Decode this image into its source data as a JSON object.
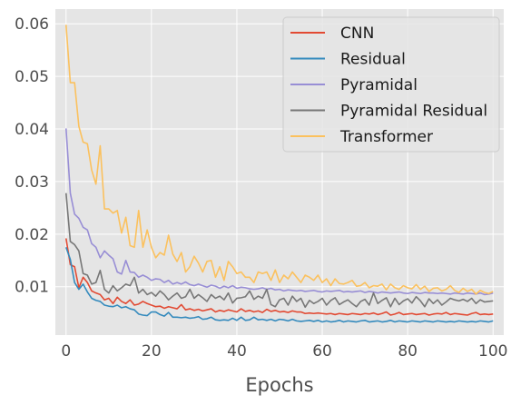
{
  "chart_data": {
    "type": "line",
    "title": "",
    "xlabel": "Epochs",
    "ylabel": "",
    "xlim": [
      -2.5,
      102.5
    ],
    "ylim": [
      0.0008,
      0.0628
    ],
    "x_ticks": [
      0,
      20,
      40,
      60,
      80,
      100
    ],
    "x_tick_labels": [
      "0",
      "20",
      "40",
      "60",
      "80",
      "100"
    ],
    "y_ticks": [
      0.01,
      0.02,
      0.03,
      0.04,
      0.05,
      0.06
    ],
    "y_tick_labels": [
      "0.01",
      "0.02",
      "0.03",
      "0.04",
      "0.05",
      "0.06"
    ],
    "grid": true,
    "legend_position": "top-right",
    "style": {
      "background": "#e5e5e5",
      "grid_color": "#ffffff",
      "text_color": "#4d4d4d"
    },
    "series": [
      {
        "name": "CNN",
        "color": "#e24a33",
        "values": [
          0.0192,
          0.0142,
          0.0138,
          0.0098,
          0.0118,
          0.0108,
          0.0092,
          0.0088,
          0.0085,
          0.0075,
          0.0078,
          0.0068,
          0.008,
          0.0072,
          0.0068,
          0.0075,
          0.0065,
          0.0067,
          0.0072,
          0.0068,
          0.0065,
          0.0062,
          0.0063,
          0.0059,
          0.0062,
          0.006,
          0.0058,
          0.0066,
          0.0056,
          0.0058,
          0.0055,
          0.0057,
          0.0054,
          0.0056,
          0.0058,
          0.0052,
          0.0055,
          0.0053,
          0.0056,
          0.0054,
          0.0052,
          0.0058,
          0.0053,
          0.0055,
          0.0052,
          0.0054,
          0.0051,
          0.0057,
          0.0053,
          0.0055,
          0.0052,
          0.0053,
          0.0051,
          0.0054,
          0.0052,
          0.0052,
          0.0049,
          0.005,
          0.0049,
          0.005,
          0.0049,
          0.0048,
          0.0049,
          0.0047,
          0.0049,
          0.0048,
          0.0047,
          0.0049,
          0.0048,
          0.0047,
          0.0049,
          0.0048,
          0.005,
          0.0047,
          0.0049,
          0.0052,
          0.0046,
          0.0048,
          0.0051,
          0.0047,
          0.0048,
          0.0049,
          0.0047,
          0.0048,
          0.0049,
          0.0046,
          0.0048,
          0.0049,
          0.0048,
          0.0051,
          0.0047,
          0.0049,
          0.0048,
          0.0047,
          0.0046,
          0.0049,
          0.0051,
          0.0047,
          0.0048,
          0.0047,
          0.0048
        ]
      },
      {
        "name": "Residual",
        "color": "#348abd",
        "values": [
          0.0175,
          0.0152,
          0.0108,
          0.0095,
          0.0105,
          0.009,
          0.0078,
          0.0074,
          0.0072,
          0.0065,
          0.0063,
          0.0062,
          0.0065,
          0.006,
          0.0062,
          0.0058,
          0.0056,
          0.0048,
          0.0046,
          0.0045,
          0.0052,
          0.0052,
          0.0047,
          0.0044,
          0.0051,
          0.0042,
          0.0042,
          0.0041,
          0.0042,
          0.004,
          0.0041,
          0.0043,
          0.0038,
          0.0039,
          0.0042,
          0.0037,
          0.0036,
          0.0037,
          0.0036,
          0.004,
          0.0036,
          0.0042,
          0.0036,
          0.0037,
          0.0042,
          0.0037,
          0.0038,
          0.0036,
          0.0038,
          0.0035,
          0.0038,
          0.0037,
          0.0035,
          0.0038,
          0.0035,
          0.0034,
          0.0035,
          0.0036,
          0.0034,
          0.0036,
          0.0033,
          0.0035,
          0.0033,
          0.0034,
          0.0036,
          0.0033,
          0.0035,
          0.0034,
          0.0033,
          0.0035,
          0.0036,
          0.0033,
          0.0034,
          0.0035,
          0.0033,
          0.0034,
          0.0036,
          0.0033,
          0.0035,
          0.0034,
          0.0033,
          0.0035,
          0.0034,
          0.0033,
          0.0035,
          0.0034,
          0.0033,
          0.0035,
          0.0034,
          0.0033,
          0.0034,
          0.0033,
          0.0035,
          0.0034,
          0.0033,
          0.0034,
          0.0033,
          0.0035,
          0.0034,
          0.0033,
          0.0035
        ]
      },
      {
        "name": "Pyramidal",
        "color": "#988ed5",
        "values": [
          0.0401,
          0.0278,
          0.0238,
          0.023,
          0.0213,
          0.0208,
          0.0182,
          0.0175,
          0.0155,
          0.0168,
          0.016,
          0.0153,
          0.0128,
          0.0124,
          0.015,
          0.0128,
          0.0127,
          0.0118,
          0.0122,
          0.0118,
          0.0112,
          0.0115,
          0.0114,
          0.0108,
          0.0112,
          0.0105,
          0.0108,
          0.0105,
          0.0109,
          0.0104,
          0.0102,
          0.0105,
          0.0102,
          0.0099,
          0.0103,
          0.0101,
          0.0097,
          0.0101,
          0.0098,
          0.0102,
          0.0097,
          0.0099,
          0.0098,
          0.0096,
          0.0095,
          0.0096,
          0.0098,
          0.0095,
          0.0097,
          0.0094,
          0.0095,
          0.0092,
          0.0094,
          0.0093,
          0.0092,
          0.0093,
          0.0091,
          0.0092,
          0.0093,
          0.0091,
          0.009,
          0.0092,
          0.0091,
          0.0092,
          0.0093,
          0.009,
          0.0091,
          0.009,
          0.0091,
          0.0092,
          0.0089,
          0.0091,
          0.009,
          0.0088,
          0.009,
          0.0089,
          0.0088,
          0.0089,
          0.009,
          0.0088,
          0.0087,
          0.0089,
          0.0088,
          0.0087,
          0.0089,
          0.0088,
          0.0088,
          0.0087,
          0.0088,
          0.0087,
          0.0086,
          0.0088,
          0.0087,
          0.0086,
          0.0088,
          0.0087,
          0.0086,
          0.0088,
          0.0085,
          0.0086,
          0.0088
        ]
      },
      {
        "name": "Pyramidal Residual",
        "color": "#777777",
        "values": [
          0.0278,
          0.0186,
          0.018,
          0.0168,
          0.0125,
          0.0122,
          0.0105,
          0.0108,
          0.0131,
          0.0095,
          0.0088,
          0.0102,
          0.0092,
          0.0098,
          0.0105,
          0.0102,
          0.0118,
          0.0088,
          0.0095,
          0.0085,
          0.0089,
          0.0082,
          0.0092,
          0.0085,
          0.0075,
          0.0082,
          0.0088,
          0.0078,
          0.0081,
          0.0095,
          0.0078,
          0.0085,
          0.0079,
          0.0072,
          0.0085,
          0.0078,
          0.0082,
          0.0075,
          0.0088,
          0.0069,
          0.0078,
          0.0079,
          0.0081,
          0.0092,
          0.0076,
          0.0082,
          0.0078,
          0.0095,
          0.0066,
          0.0062,
          0.0075,
          0.0078,
          0.0065,
          0.0082,
          0.0072,
          0.0078,
          0.0061,
          0.0074,
          0.0068,
          0.0072,
          0.0078,
          0.0065,
          0.0074,
          0.0079,
          0.0066,
          0.0071,
          0.0075,
          0.0068,
          0.0062,
          0.0072,
          0.0076,
          0.0065,
          0.0088,
          0.0068,
          0.0074,
          0.0079,
          0.0062,
          0.0078,
          0.0066,
          0.0073,
          0.0077,
          0.0069,
          0.0081,
          0.0073,
          0.0062,
          0.0077,
          0.0068,
          0.0075,
          0.0065,
          0.0071,
          0.0078,
          0.0075,
          0.0073,
          0.0076,
          0.0072,
          0.0078,
          0.0068,
          0.0075,
          0.0071,
          0.0072,
          0.0073
        ]
      },
      {
        "name": "Transformer",
        "color": "#fbc15e",
        "values": [
          0.0598,
          0.0488,
          0.0488,
          0.0405,
          0.0375,
          0.0372,
          0.0322,
          0.0295,
          0.0368,
          0.0248,
          0.0248,
          0.024,
          0.0245,
          0.0202,
          0.0232,
          0.0178,
          0.0175,
          0.0245,
          0.0175,
          0.0208,
          0.0175,
          0.0155,
          0.0165,
          0.016,
          0.0198,
          0.0162,
          0.0148,
          0.0165,
          0.0128,
          0.0138,
          0.0158,
          0.0145,
          0.0128,
          0.0148,
          0.015,
          0.0118,
          0.0138,
          0.0112,
          0.0148,
          0.0138,
          0.0125,
          0.0128,
          0.0118,
          0.0118,
          0.0108,
          0.0128,
          0.0125,
          0.0128,
          0.0112,
          0.0132,
          0.0108,
          0.0122,
          0.0115,
          0.0128,
          0.0118,
          0.0108,
          0.0122,
          0.0118,
          0.0112,
          0.0122,
          0.0108,
          0.0115,
          0.0102,
          0.0115,
          0.0106,
          0.0105,
          0.0108,
          0.0112,
          0.0101,
          0.0102,
          0.0108,
          0.0098,
          0.0102,
          0.0101,
          0.0105,
          0.0094,
          0.0105,
          0.0098,
          0.0095,
          0.0102,
          0.0098,
          0.0096,
          0.0104,
          0.0095,
          0.0101,
          0.0091,
          0.0097,
          0.0098,
          0.0092,
          0.0095,
          0.0102,
          0.0093,
          0.0089,
          0.0097,
          0.0091,
          0.0095,
          0.0086,
          0.0093,
          0.0089,
          0.0087,
          0.0091
        ]
      }
    ]
  }
}
